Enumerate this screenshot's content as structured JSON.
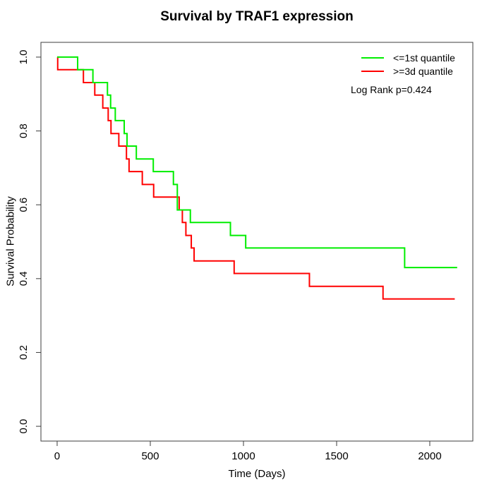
{
  "chart_data": {
    "type": "line",
    "variant": "kaplan-meier-step",
    "title": "Survival by TRAF1 expression",
    "xlabel": "Time (Days)",
    "ylabel": "Survival Probability",
    "annotation": "Log Rank p=0.424",
    "grid": false,
    "legend_position": "top-right",
    "xlim": [
      -87,
      2231
    ],
    "ylim": [
      -0.04,
      1.04
    ],
    "x_ticks": [
      {
        "v": 0,
        "label": "0"
      },
      {
        "v": 500,
        "label": "500"
      },
      {
        "v": 1000,
        "label": "1000"
      },
      {
        "v": 1500,
        "label": "1500"
      },
      {
        "v": 2000,
        "label": "2000"
      }
    ],
    "y_ticks": [
      {
        "v": 0.0,
        "label": "0.0"
      },
      {
        "v": 0.2,
        "label": "0.2"
      },
      {
        "v": 0.4,
        "label": "0.4"
      },
      {
        "v": 0.6,
        "label": "0.6"
      },
      {
        "v": 0.8,
        "label": "0.8"
      },
      {
        "v": 1.0,
        "label": "1.0"
      }
    ],
    "series": [
      {
        "name": ">=3d quantile",
        "color": "#ff0000",
        "end_time": 2134,
        "steps": [
          [
            0,
            1.0
          ],
          [
            3,
            0.966
          ],
          [
            141,
            0.931
          ],
          [
            202,
            0.897
          ],
          [
            245,
            0.862
          ],
          [
            274,
            0.828
          ],
          [
            289,
            0.793
          ],
          [
            331,
            0.759
          ],
          [
            372,
            0.724
          ],
          [
            386,
            0.69
          ],
          [
            457,
            0.655
          ],
          [
            518,
            0.621
          ],
          [
            655,
            0.586
          ],
          [
            672,
            0.552
          ],
          [
            691,
            0.517
          ],
          [
            720,
            0.483
          ],
          [
            735,
            0.448
          ],
          [
            950,
            0.414
          ],
          [
            1354,
            0.379
          ],
          [
            1749,
            0.345
          ]
        ]
      },
      {
        "name": "<=1st quantile",
        "color": "#00ee00",
        "end_time": 2147,
        "steps": [
          [
            0,
            1.0
          ],
          [
            110,
            0.966
          ],
          [
            192,
            0.931
          ],
          [
            270,
            0.897
          ],
          [
            287,
            0.862
          ],
          [
            312,
            0.828
          ],
          [
            360,
            0.793
          ],
          [
            375,
            0.759
          ],
          [
            425,
            0.724
          ],
          [
            516,
            0.69
          ],
          [
            624,
            0.655
          ],
          [
            645,
            0.586
          ],
          [
            715,
            0.552
          ],
          [
            930,
            0.517
          ],
          [
            1012,
            0.483
          ],
          [
            1865,
            0.43
          ]
        ]
      }
    ],
    "legend_order": [
      1,
      0
    ],
    "axis_color": "#3d3d3d",
    "text_color": "#000000"
  }
}
